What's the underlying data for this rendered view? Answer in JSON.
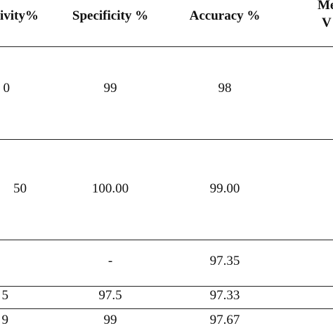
{
  "headers": {
    "sensitivity": "ivity%",
    "specificity": "Specificity %",
    "accuracy": "Accuracy %",
    "mean_line1": "Mea",
    "mean_line2": "V"
  },
  "rows": [
    {
      "col1": "0",
      "specificity": "99",
      "accuracy": "98"
    },
    {
      "col1": "50",
      "specificity": "100.00",
      "accuracy": "99.00"
    },
    {
      "col1": "",
      "specificity": "-",
      "accuracy": "97.35"
    },
    {
      "col1": "5",
      "specificity": "97.5",
      "accuracy": "97.33"
    },
    {
      "col1": "9",
      "specificity": "99",
      "accuracy": "97.67"
    }
  ]
}
